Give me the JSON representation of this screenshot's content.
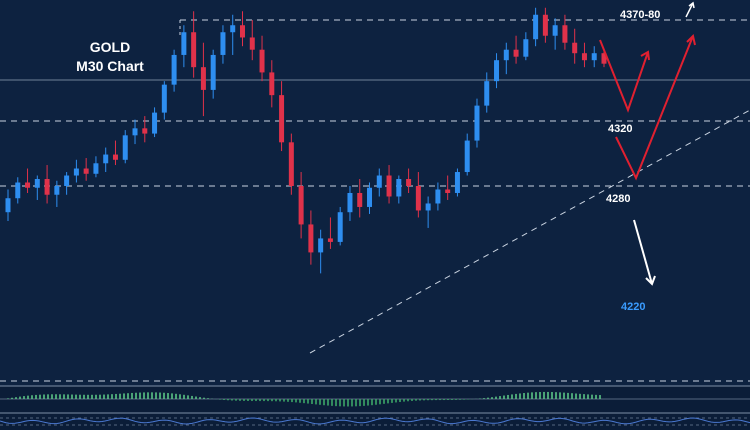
{
  "title": {
    "line1": "GOLD",
    "line2": "M30 Chart"
  },
  "colors": {
    "background": "#0d2240",
    "bull": "#2e8ef0",
    "bear": "#e0324a",
    "level": "#c9d3e0",
    "arrow_red": "#e02030",
    "arrow_white": "#ffffff",
    "label_blue": "#3a9cff"
  },
  "chart_data": {
    "type": "candlestick",
    "instrument": "GOLD",
    "timeframe": "M30",
    "levels": [
      {
        "value": 4375,
        "label": "4370-80"
      },
      {
        "value": 4320,
        "label": "4320"
      },
      {
        "value": 4280,
        "label": "4280"
      }
    ],
    "targets": [
      {
        "value": 4220,
        "label": "4220"
      }
    ],
    "ylim": [
      4200,
      4390
    ],
    "candles": [
      [
        4265,
        4278,
        4260,
        4273
      ],
      [
        4273,
        4285,
        4270,
        4282
      ],
      [
        4282,
        4290,
        4276,
        4279
      ],
      [
        4279,
        4286,
        4272,
        4284
      ],
      [
        4284,
        4292,
        4270,
        4275
      ],
      [
        4275,
        4283,
        4268,
        4280
      ],
      [
        4280,
        4288,
        4275,
        4286
      ],
      [
        4286,
        4295,
        4282,
        4290
      ],
      [
        4290,
        4296,
        4283,
        4287
      ],
      [
        4287,
        4297,
        4285,
        4293
      ],
      [
        4293,
        4302,
        4288,
        4298
      ],
      [
        4298,
        4306,
        4292,
        4295
      ],
      [
        4295,
        4312,
        4293,
        4309
      ],
      [
        4309,
        4318,
        4304,
        4313
      ],
      [
        4313,
        4320,
        4305,
        4310
      ],
      [
        4310,
        4325,
        4308,
        4322
      ],
      [
        4322,
        4340,
        4318,
        4338
      ],
      [
        4338,
        4358,
        4334,
        4355
      ],
      [
        4355,
        4372,
        4348,
        4368
      ],
      [
        4368,
        4380,
        4342,
        4348
      ],
      [
        4348,
        4362,
        4320,
        4335
      ],
      [
        4335,
        4358,
        4330,
        4355
      ],
      [
        4355,
        4372,
        4350,
        4368
      ],
      [
        4368,
        4378,
        4355,
        4372
      ],
      [
        4372,
        4380,
        4360,
        4365
      ],
      [
        4365,
        4375,
        4352,
        4358
      ],
      [
        4358,
        4366,
        4340,
        4345
      ],
      [
        4345,
        4352,
        4325,
        4332
      ],
      [
        4332,
        4340,
        4300,
        4305
      ],
      [
        4305,
        4310,
        4275,
        4280
      ],
      [
        4280,
        4288,
        4250,
        4258
      ],
      [
        4258,
        4266,
        4235,
        4242
      ],
      [
        4242,
        4255,
        4230,
        4250
      ],
      [
        4250,
        4262,
        4244,
        4248
      ],
      [
        4248,
        4268,
        4246,
        4265
      ],
      [
        4265,
        4280,
        4260,
        4276
      ],
      [
        4276,
        4284,
        4262,
        4268
      ],
      [
        4268,
        4282,
        4264,
        4279
      ],
      [
        4279,
        4290,
        4274,
        4286
      ],
      [
        4286,
        4292,
        4270,
        4274
      ],
      [
        4274,
        4286,
        4270,
        4284
      ],
      [
        4284,
        4290,
        4276,
        4280
      ],
      [
        4280,
        4288,
        4262,
        4266
      ],
      [
        4266,
        4274,
        4256,
        4270
      ],
      [
        4270,
        4282,
        4266,
        4278
      ],
      [
        4278,
        4286,
        4272,
        4276
      ],
      [
        4276,
        4290,
        4274,
        4288
      ],
      [
        4288,
        4310,
        4286,
        4306
      ],
      [
        4306,
        4330,
        4302,
        4326
      ],
      [
        4326,
        4345,
        4322,
        4340
      ],
      [
        4340,
        4356,
        4336,
        4352
      ],
      [
        4352,
        4362,
        4344,
        4358
      ],
      [
        4358,
        4366,
        4350,
        4354
      ],
      [
        4354,
        4368,
        4352,
        4364
      ],
      [
        4364,
        4382,
        4360,
        4378
      ],
      [
        4378,
        4382,
        4362,
        4366
      ],
      [
        4366,
        4376,
        4358,
        4372
      ],
      [
        4372,
        4378,
        4358,
        4362
      ],
      [
        4362,
        4370,
        4350,
        4356
      ],
      [
        4356,
        4362,
        4348,
        4352
      ],
      [
        4352,
        4360,
        4348,
        4356
      ],
      [
        4356,
        4358,
        4348,
        4350
      ]
    ],
    "indicator": "oscillator histogram (bottom panel)",
    "grid": false
  },
  "annotations": {
    "level_4370": "4370-80",
    "level_4320": "4320",
    "level_4280": "4280",
    "target_4220": "4220"
  }
}
